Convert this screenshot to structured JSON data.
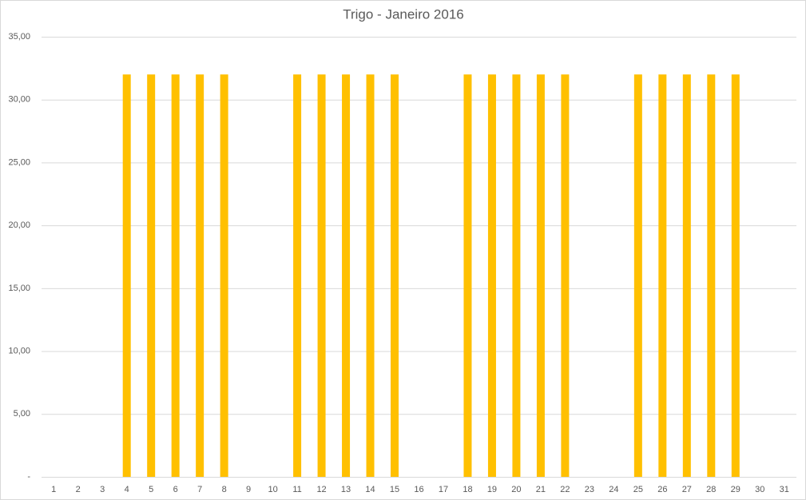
{
  "chart_data": {
    "type": "bar",
    "title": "Trigo - Janeiro 2016",
    "categories": [
      "1",
      "2",
      "3",
      "4",
      "5",
      "6",
      "7",
      "8",
      "9",
      "10",
      "11",
      "12",
      "13",
      "14",
      "15",
      "16",
      "17",
      "18",
      "19",
      "20",
      "21",
      "22",
      "23",
      "24",
      "25",
      "26",
      "27",
      "28",
      "29",
      "30",
      "31"
    ],
    "values": [
      0,
      0,
      0,
      32,
      32,
      32,
      32,
      32,
      0,
      0,
      32,
      32,
      32,
      32,
      32,
      0,
      0,
      32,
      32,
      32,
      32,
      32,
      0,
      0,
      32,
      32,
      32,
      32,
      32,
      0,
      0
    ],
    "color": "#ffc000",
    "ylim": [
      0,
      35
    ],
    "yticks": [
      {
        "value": 0,
        "label": "-"
      },
      {
        "value": 5,
        "label": "5,00"
      },
      {
        "value": 10,
        "label": "10,00"
      },
      {
        "value": 15,
        "label": "15,00"
      },
      {
        "value": 20,
        "label": "20,00"
      },
      {
        "value": 25,
        "label": "25,00"
      },
      {
        "value": 30,
        "label": "30,00"
      },
      {
        "value": 35,
        "label": "35,00"
      }
    ],
    "grid": true
  }
}
